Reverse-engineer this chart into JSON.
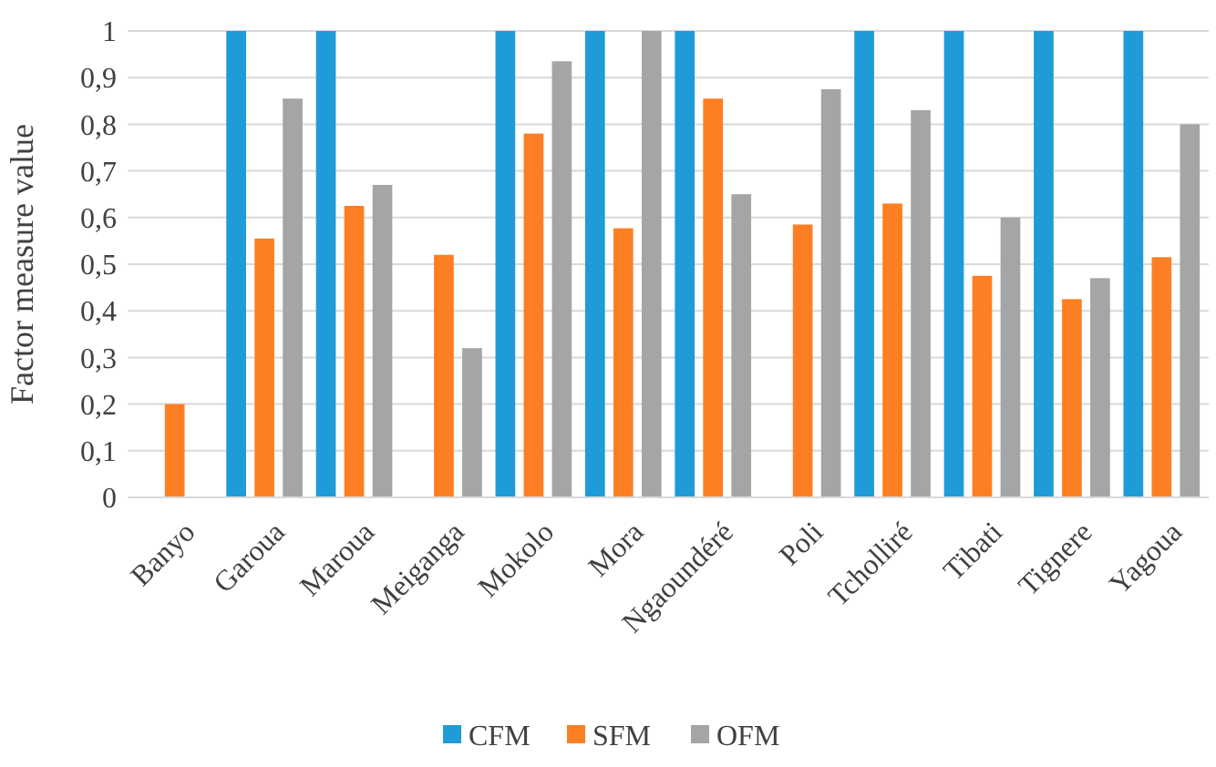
{
  "chart_data": {
    "type": "bar",
    "ylabel": "Factor measure value",
    "categories": [
      "Banyo",
      "Garoua",
      "Maroua",
      "Meiganga",
      "Mokolo",
      "Mora",
      "Ngaoundéré",
      "Poli",
      "Tcholliré",
      "Tibati",
      "Tignere",
      "Yagoua"
    ],
    "series": [
      {
        "name": "CFM",
        "color": "#1f9bd7",
        "values": [
          0,
          1,
          1,
          0,
          1,
          1,
          1,
          0,
          1,
          1,
          1,
          1
        ]
      },
      {
        "name": "SFM",
        "color": "#fd7f23",
        "values": [
          0.2,
          0.555,
          0.625,
          0.52,
          0.78,
          0.577,
          0.855,
          0.585,
          0.63,
          0.475,
          0.425,
          0.515
        ]
      },
      {
        "name": "OFM",
        "color": "#a5a5a5",
        "values": [
          0,
          0.855,
          0.67,
          0.32,
          0.935,
          1,
          0.65,
          0.875,
          0.83,
          0.6,
          0.47,
          0.8
        ]
      }
    ],
    "ylim": [
      0,
      1
    ],
    "yticks": [
      0,
      {
        "value": 0.1,
        "label": "0,1"
      },
      {
        "value": 0.2,
        "label": "0,2"
      },
      {
        "value": 0.3,
        "label": "0,3"
      },
      {
        "value": 0.4,
        "label": "0,4"
      },
      {
        "value": 0.5,
        "label": "0,5"
      },
      {
        "value": 0.6,
        "label": "0,6"
      },
      {
        "value": 0.7,
        "label": "0,7"
      },
      {
        "value": 0.8,
        "label": "0,8"
      },
      {
        "value": 0.9,
        "label": "0,9"
      },
      1
    ],
    "grid": "y",
    "legend": "bottom"
  }
}
